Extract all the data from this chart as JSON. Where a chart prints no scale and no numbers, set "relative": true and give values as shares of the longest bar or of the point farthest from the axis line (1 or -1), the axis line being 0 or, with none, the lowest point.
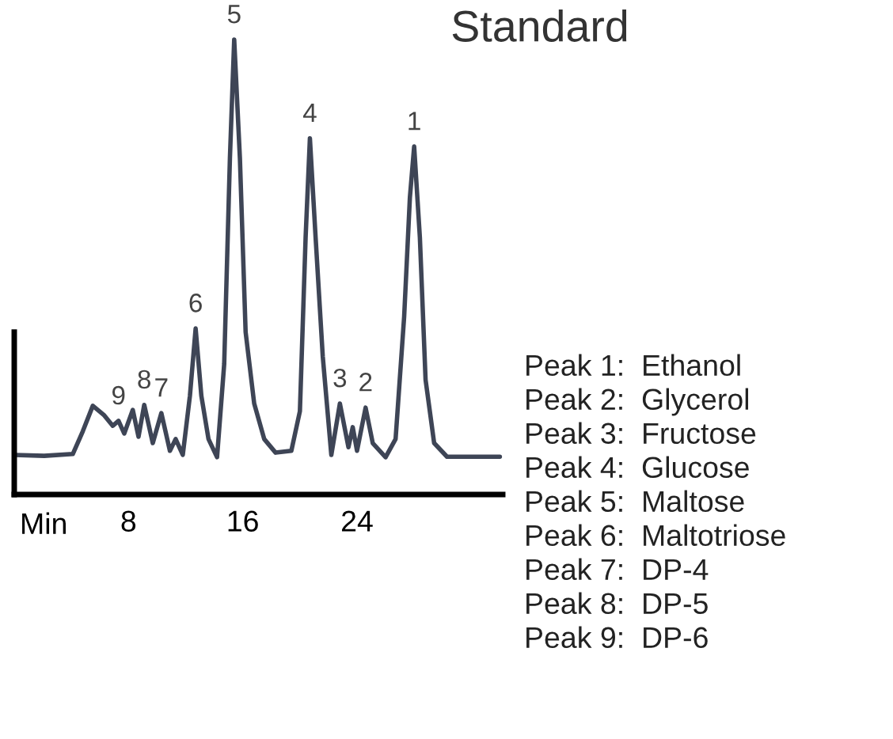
{
  "chart_data": {
    "type": "line",
    "title": "Standard",
    "xlabel": "Min",
    "relative": true,
    "xlim": [
      0,
      34.2
    ],
    "xticks": [
      8,
      16,
      24
    ],
    "grid": false,
    "legend": false,
    "marker": "none",
    "line_style": "solid",
    "series": [
      {
        "color": "#3e4556",
        "x": [
          0,
          2.1,
          4.1,
          4.8,
          5.5,
          6.3,
          6.9,
          7.3,
          7.7,
          8.3,
          8.7,
          9.1,
          9.7,
          10.3,
          10.9,
          11.3,
          11.8,
          12.3,
          12.7,
          13.1,
          13.6,
          14.2,
          14.7,
          15.1,
          15.4,
          15.8,
          16.2,
          16.8,
          17.5,
          18.3,
          19.4,
          20.0,
          20.4,
          20.7,
          21.1,
          21.6,
          22.2,
          22.8,
          23.4,
          23.7,
          24.0,
          24.6,
          25.1,
          26.0,
          26.7,
          27.3,
          27.7,
          28.0,
          28.4,
          28.8,
          29.4,
          30.3,
          34.0
        ],
        "values": [
          0.087,
          0.085,
          0.089,
          0.139,
          0.195,
          0.174,
          0.151,
          0.162,
          0.134,
          0.186,
          0.127,
          0.197,
          0.113,
          0.179,
          0.096,
          0.122,
          0.087,
          0.217,
          0.365,
          0.217,
          0.122,
          0.082,
          0.287,
          0.739,
          1,
          0.739,
          0.357,
          0.2,
          0.122,
          0.092,
          0.096,
          0.183,
          0.565,
          0.783,
          0.565,
          0.304,
          0.087,
          0.2,
          0.104,
          0.148,
          0.096,
          0.191,
          0.113,
          0.082,
          0.122,
          0.391,
          0.652,
          0.765,
          0.565,
          0.252,
          0.113,
          0.083,
          0.083
        ]
      }
    ],
    "annotations": [
      {
        "text": "1",
        "x": 28.0,
        "y": 0.765
      },
      {
        "text": "2",
        "x": 24.6,
        "y": 0.191
      },
      {
        "text": "3",
        "x": 22.8,
        "y": 0.2
      },
      {
        "text": "4",
        "x": 20.7,
        "y": 0.783
      },
      {
        "text": "5",
        "x": 15.4,
        "y": 1
      },
      {
        "text": "6",
        "x": 12.7,
        "y": 0.365
      },
      {
        "text": "7",
        "x": 10.3,
        "y": 0.179
      },
      {
        "text": "8",
        "x": 9.1,
        "y": 0.197
      },
      {
        "text": "9",
        "x": 7.3,
        "y": 0.162
      },
      "Peak 1:  Ethanol",
      "Peak 2:  Glycerol",
      "Peak 3:  Fructose",
      "Peak 4:  Glucose",
      "Peak 5:  Maltose",
      "Peak 6:  Maltotriose",
      "Peak 7:  DP-4",
      "Peak 8:  DP-5",
      "Peak 9:  DP-6"
    ]
  }
}
